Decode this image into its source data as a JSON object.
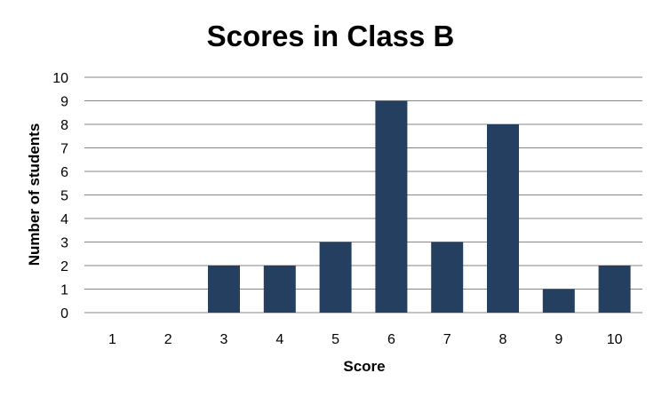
{
  "chart_data": {
    "type": "bar",
    "title": "Scores in Class B",
    "xlabel": "Score",
    "ylabel": "Number of students",
    "categories": [
      "1",
      "2",
      "3",
      "4",
      "5",
      "6",
      "7",
      "8",
      "9",
      "10"
    ],
    "values": [
      0,
      0,
      2,
      2,
      3,
      9,
      3,
      8,
      1,
      2
    ],
    "ylim": [
      0,
      10
    ],
    "yticks": [
      "0",
      "1",
      "2",
      "3",
      "4",
      "5",
      "6",
      "7",
      "8",
      "9",
      "10"
    ],
    "grid": true,
    "legend": "none",
    "bar_color": "#243F60",
    "grid_color": "#868686"
  }
}
